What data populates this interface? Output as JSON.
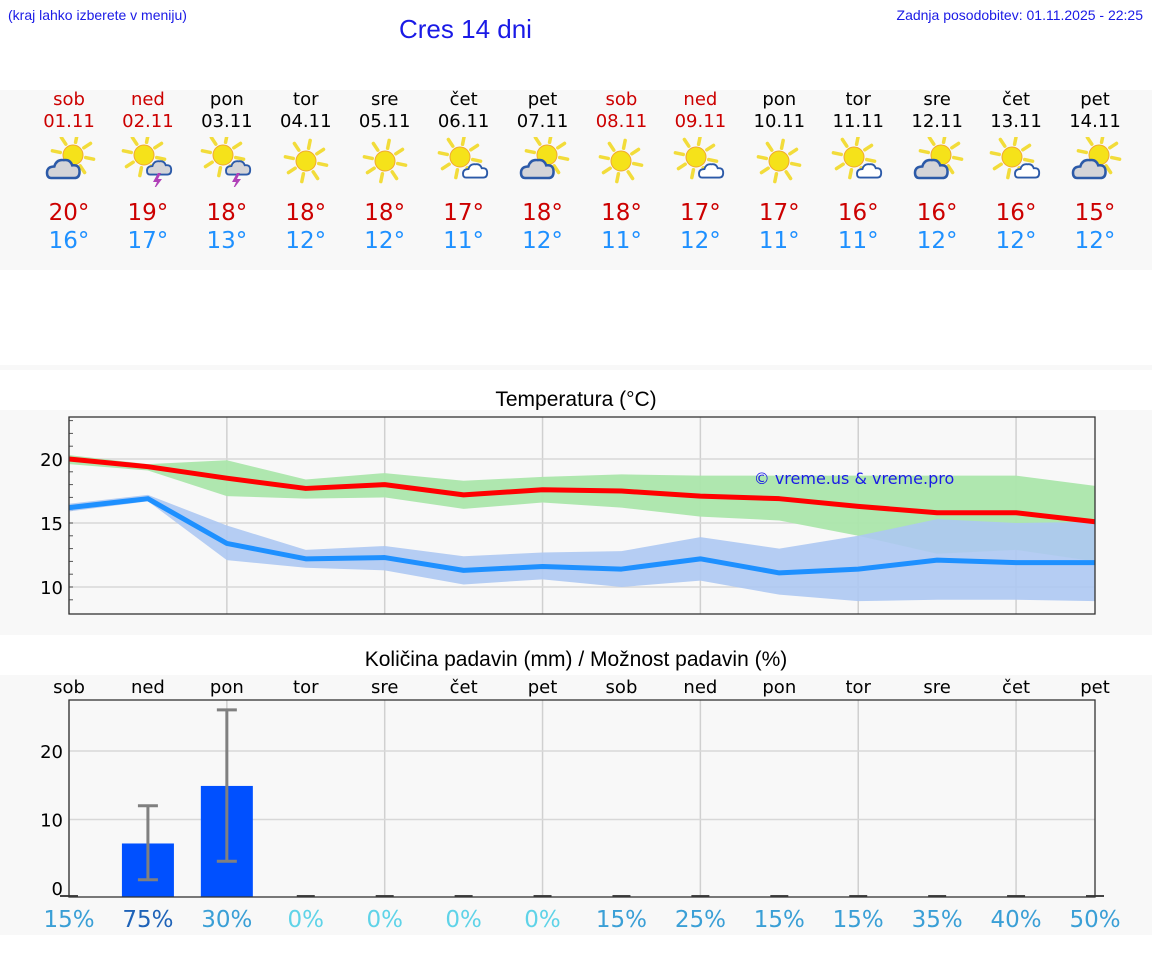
{
  "header": {
    "hint": "(kraj lahko izberete v meniju)",
    "title": "Cres 14 dni",
    "last_update": "Zadnja posodobitev: 01.11.2025 - 22:25"
  },
  "colors": {
    "link_blue": "#1a1ae6",
    "weekend_red": "#cc0000",
    "tmax_red": "#cc0000",
    "tmin_blue": "#1e90ff",
    "max_line": "#ff0000",
    "min_line": "#1e90ff",
    "max_band": "#abe6ab",
    "min_band": "#adc8f2",
    "precip_bar": "#0050ff",
    "error_bar": "#808080"
  },
  "forecast": {
    "days": [
      {
        "name": "sob",
        "date": "01.11",
        "weekend": true,
        "icon": "partly-cloudy-icon",
        "tmax": "20°",
        "tmin": "16°"
      },
      {
        "name": "ned",
        "date": "02.11",
        "weekend": true,
        "icon": "sun-thunderstorm-icon",
        "tmax": "19°",
        "tmin": "17°"
      },
      {
        "name": "pon",
        "date": "03.11",
        "weekend": false,
        "icon": "sun-thunderstorm-icon",
        "tmax": "18°",
        "tmin": "13°"
      },
      {
        "name": "tor",
        "date": "04.11",
        "weekend": false,
        "icon": "sunny-icon",
        "tmax": "18°",
        "tmin": "12°"
      },
      {
        "name": "sre",
        "date": "05.11",
        "weekend": false,
        "icon": "sunny-icon",
        "tmax": "18°",
        "tmin": "12°"
      },
      {
        "name": "čet",
        "date": "06.11",
        "weekend": false,
        "icon": "mostly-sunny-icon",
        "tmax": "17°",
        "tmin": "11°"
      },
      {
        "name": "pet",
        "date": "07.11",
        "weekend": false,
        "icon": "partly-cloudy-icon",
        "tmax": "18°",
        "tmin": "12°"
      },
      {
        "name": "sob",
        "date": "08.11",
        "weekend": true,
        "icon": "sunny-icon",
        "tmax": "18°",
        "tmin": "11°"
      },
      {
        "name": "ned",
        "date": "09.11",
        "weekend": true,
        "icon": "mostly-sunny-icon",
        "tmax": "17°",
        "tmin": "12°"
      },
      {
        "name": "pon",
        "date": "10.11",
        "weekend": false,
        "icon": "sunny-icon",
        "tmax": "17°",
        "tmin": "11°"
      },
      {
        "name": "tor",
        "date": "11.11",
        "weekend": false,
        "icon": "mostly-sunny-icon",
        "tmax": "16°",
        "tmin": "11°"
      },
      {
        "name": "sre",
        "date": "12.11",
        "weekend": false,
        "icon": "partly-cloudy-icon",
        "tmax": "16°",
        "tmin": "12°"
      },
      {
        "name": "čet",
        "date": "13.11",
        "weekend": false,
        "icon": "mostly-sunny-icon",
        "tmax": "16°",
        "tmin": "12°"
      },
      {
        "name": "pet",
        "date": "14.11",
        "weekend": false,
        "icon": "partly-cloudy-icon",
        "tmax": "15°",
        "tmin": "12°"
      }
    ]
  },
  "chart_data": [
    {
      "type": "line",
      "title": "Temperatura (°C)",
      "xlabel": "",
      "ylabel": "",
      "x": [
        "01.11",
        "02.11",
        "03.11",
        "04.11",
        "05.11",
        "06.11",
        "07.11",
        "08.11",
        "09.11",
        "10.11",
        "11.11",
        "12.11",
        "13.11",
        "14.11"
      ],
      "ylim": [
        7.9,
        23.3
      ],
      "yticks": [
        10,
        15,
        20
      ],
      "grid": true,
      "annotation": "© vreme.us & vreme.pro",
      "series": [
        {
          "name": "max",
          "color": "#ff0000",
          "values": [
            20.0,
            19.4,
            18.5,
            17.7,
            18.0,
            17.2,
            17.6,
            17.5,
            17.1,
            16.9,
            16.3,
            15.8,
            15.8,
            15.1
          ],
          "band_low": [
            19.6,
            19.1,
            17.1,
            16.9,
            17.0,
            16.1,
            16.6,
            16.2,
            15.5,
            15.2,
            14.0,
            12.6,
            12.9,
            12.0
          ],
          "band_high": [
            20.3,
            19.6,
            19.9,
            18.4,
            18.9,
            18.3,
            18.6,
            18.8,
            18.7,
            18.7,
            18.7,
            18.7,
            18.7,
            17.9
          ]
        },
        {
          "name": "min",
          "color": "#1e90ff",
          "values": [
            16.2,
            16.9,
            13.4,
            12.2,
            12.3,
            11.3,
            11.6,
            11.4,
            12.2,
            11.1,
            11.4,
            12.1,
            11.9,
            11.9
          ],
          "band_low": [
            15.9,
            16.7,
            12.1,
            11.5,
            11.3,
            10.2,
            10.6,
            10.0,
            10.5,
            9.4,
            8.9,
            9.0,
            9.0,
            8.9
          ],
          "band_high": [
            16.5,
            17.2,
            14.8,
            12.9,
            13.2,
            12.4,
            12.7,
            12.8,
            13.9,
            13.0,
            14.0,
            15.3,
            15.0,
            15.1
          ]
        }
      ]
    },
    {
      "type": "bar",
      "title": "Količina padavin (mm) / Možnost padavin (%)",
      "categories": [
        "sob",
        "ned",
        "pon",
        "tor",
        "sre",
        "čet",
        "pet",
        "sob",
        "ned",
        "pon",
        "tor",
        "sre",
        "čet",
        "pet"
      ],
      "values": [
        0,
        6.5,
        14.9,
        0,
        0,
        0,
        0,
        0,
        0,
        0,
        0,
        0,
        0,
        0
      ],
      "error_low": [
        0,
        1.2,
        3.9,
        0,
        0,
        0,
        0,
        0,
        0,
        0,
        0,
        0,
        0,
        0
      ],
      "error_high": [
        0,
        12.0,
        26.0,
        0,
        0,
        0,
        0,
        0,
        0,
        0,
        0,
        0,
        0,
        0
      ],
      "probability": [
        "15%",
        "75%",
        "30%",
        "0%",
        "0%",
        "0%",
        "0%",
        "15%",
        "25%",
        "15%",
        "15%",
        "35%",
        "40%",
        "50%"
      ],
      "probability_colors": [
        "#3a9fd6",
        "#1f63b8",
        "#3a9fd6",
        "#5fd3e8",
        "#5fd3e8",
        "#5fd3e8",
        "#5fd3e8",
        "#3a9fd6",
        "#3a9fd6",
        "#3a9fd6",
        "#3a9fd6",
        "#3a9fd6",
        "#3a9fd6",
        "#3a9fd6"
      ],
      "xlabel": "",
      "ylabel": "",
      "ylim": [
        -1.5,
        26
      ],
      "yticks": [
        0,
        10,
        20
      ],
      "grid": true
    }
  ]
}
